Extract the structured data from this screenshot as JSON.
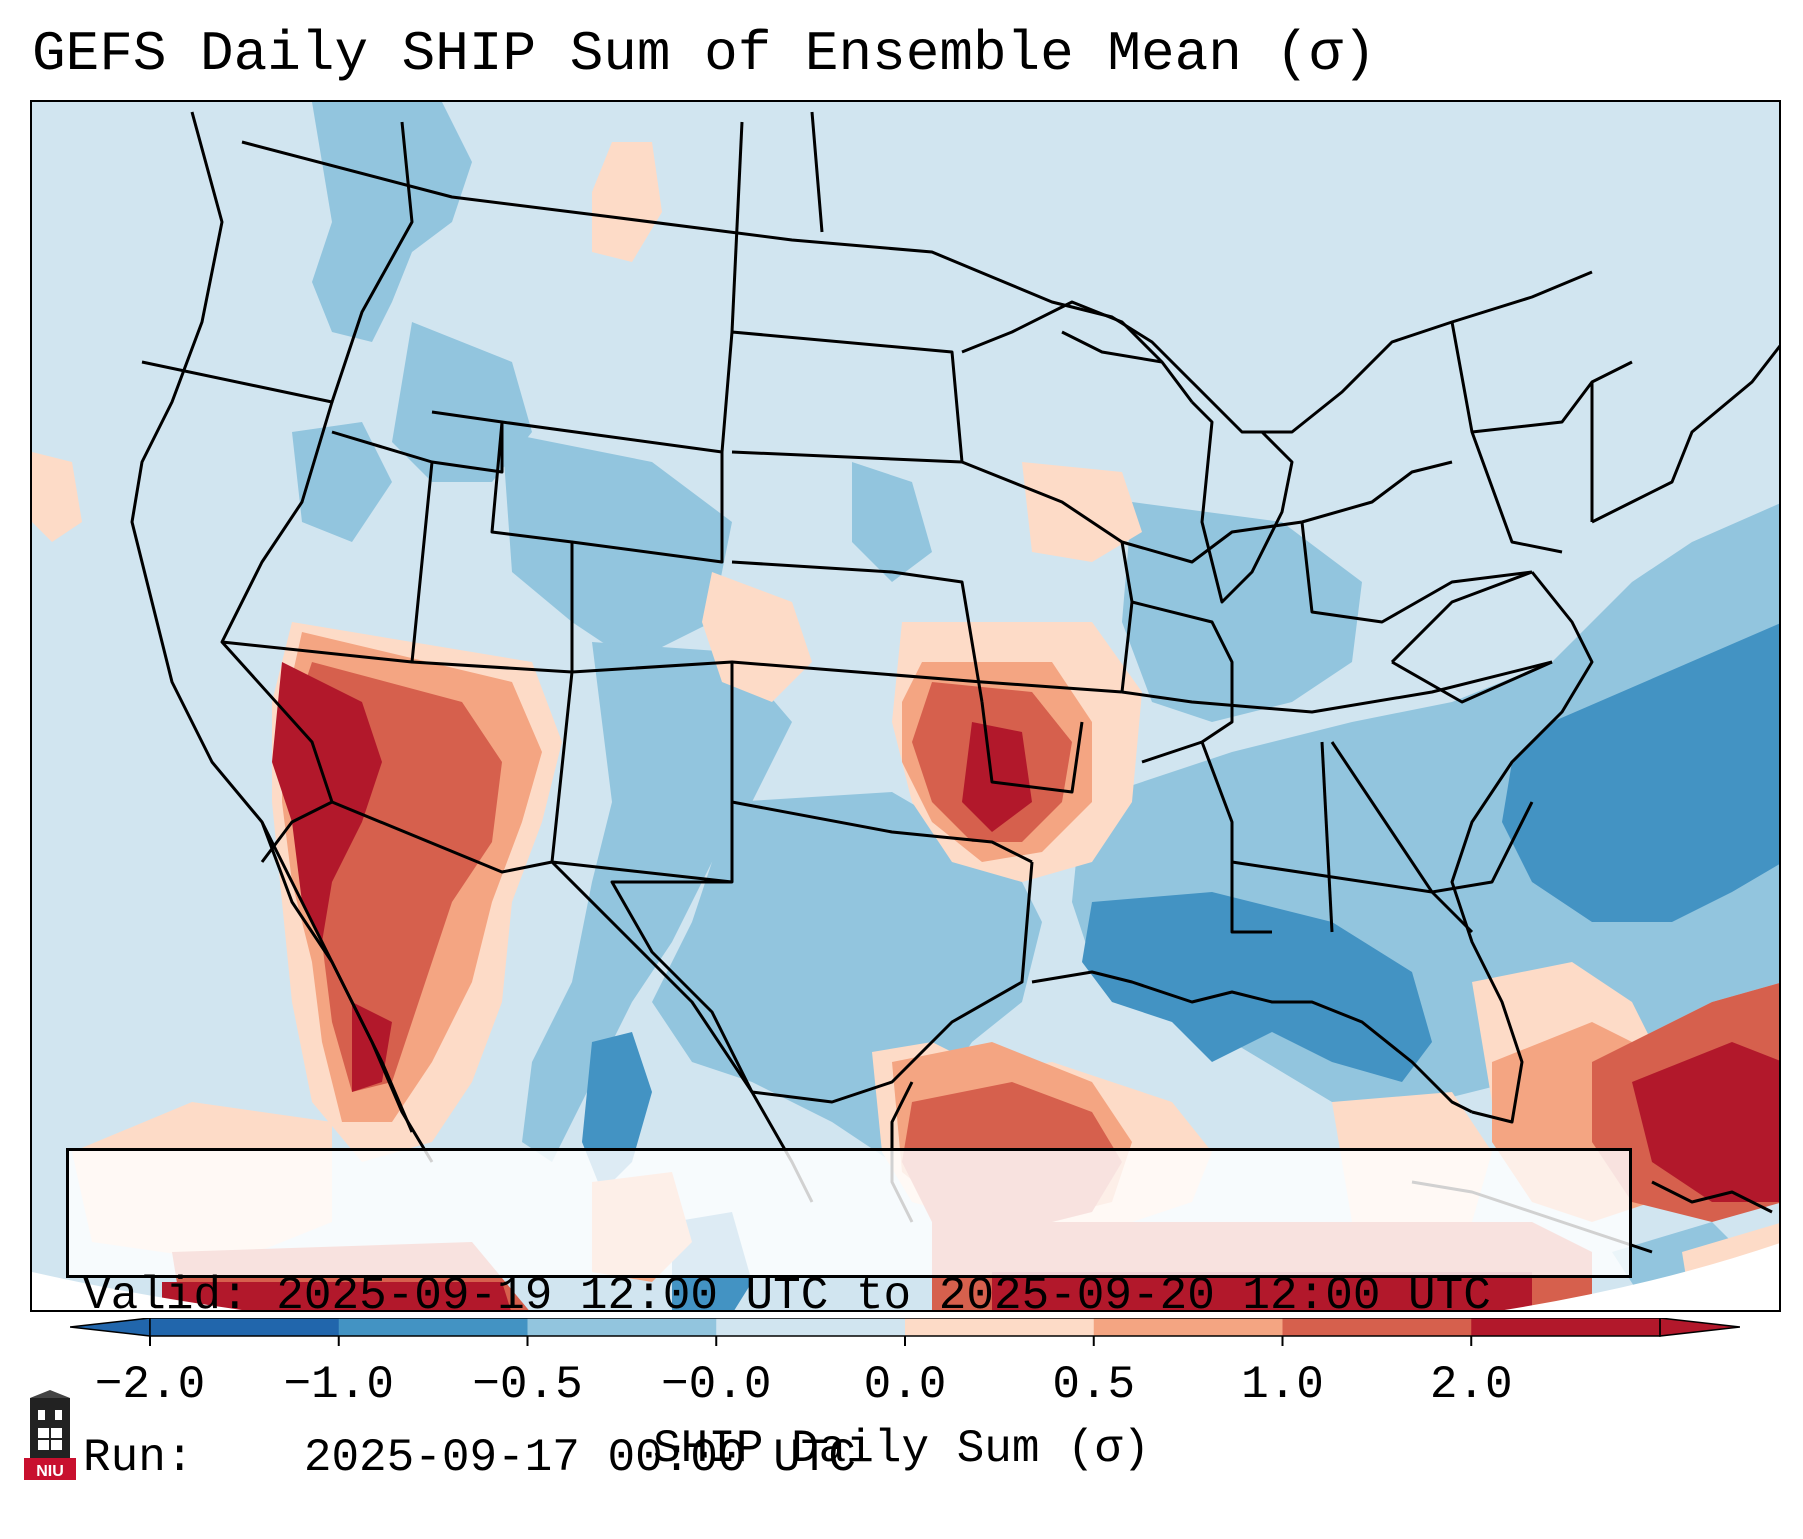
{
  "title": "GEFS Daily SHIP Sum of Ensemble Mean (σ)",
  "info": {
    "valid_label": "Valid:",
    "valid_value": "2025-09-19 12:00 UTC to 2025-09-20 12:00 UTC",
    "run_label": "Run:",
    "run_value": "2025-09-17 00:00 UTC"
  },
  "colorbar": {
    "label": "SHIP Daily Sum (σ)",
    "ticks": [
      "−2.0",
      "−1.0",
      "−0.5",
      "−0.0",
      "0.0",
      "0.5",
      "1.0",
      "2.0"
    ],
    "colors": [
      "#2166ac",
      "#4393c3",
      "#92c5de",
      "#d1e5f0",
      "#fddbc7",
      "#f4a582",
      "#d6604d",
      "#b2182b"
    ],
    "extend": "both"
  },
  "palette": {
    "bin_neg2_neg1": "#4393c3",
    "bin_neg1_neg05": "#92c5de",
    "bin_neg05_0": "#d1e5f0",
    "bin_0_05": "#fddbc7",
    "bin_05_1": "#f4a582",
    "bin_1_2": "#d6604d",
    "bin_gt2": "#b2182b"
  },
  "logo": {
    "text": "NIU"
  }
}
